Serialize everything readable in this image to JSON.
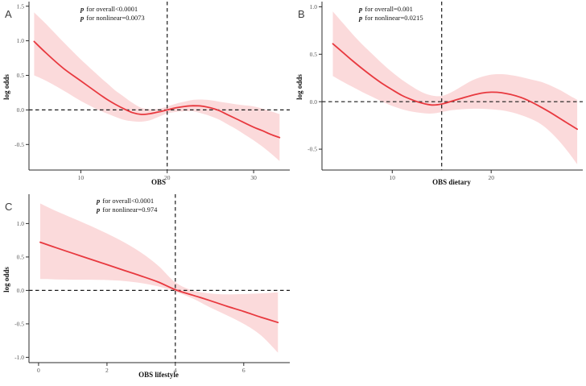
{
  "colors": {
    "background": "#ffffff",
    "curve": "#E8393F",
    "band": "#FBDADB",
    "dashed": "#1a1a1a",
    "axis": "#2b2b2b",
    "tick_text": "#565656"
  },
  "chart_data": [
    {
      "type": "line",
      "panel_label": "A",
      "xlabel": "OBS",
      "ylabel": "log odds",
      "annotation_line1_p": "p",
      "annotation_line1": " for overall<0.0001",
      "annotation_line2_p": "p",
      "annotation_line2": " for nonlinear=0.0073",
      "xlim": [
        4,
        34
      ],
      "ylim": [
        -0.87,
        1.52
      ],
      "xticks": [
        10,
        20,
        30
      ],
      "xtick_labels": [
        "10",
        "20",
        "30"
      ],
      "yticks": [
        1.5,
        1.0,
        0.5,
        0.0,
        -0.5
      ],
      "ytick_labels": [
        "1.5",
        "1.0",
        "0.5",
        "0.0",
        "-0.5"
      ],
      "ref_x": 20,
      "ref_y": 0,
      "legend": "none",
      "grid": false,
      "x": [
        4.6,
        6,
        8,
        10,
        12,
        13,
        14,
        15,
        16,
        17,
        18,
        19,
        20,
        21,
        22,
        23,
        24,
        25,
        26,
        27,
        28,
        29,
        30,
        31,
        32,
        33
      ],
      "estimate": [
        0.99,
        0.82,
        0.6,
        0.42,
        0.24,
        0.155,
        0.08,
        0.015,
        -0.04,
        -0.065,
        -0.055,
        -0.03,
        0,
        0.03,
        0.05,
        0.06,
        0.055,
        0.03,
        -0.01,
        -0.07,
        -0.13,
        -0.19,
        -0.25,
        -0.3,
        -0.355,
        -0.4
      ],
      "ci_upper": [
        1.41,
        1.24,
        0.98,
        0.73,
        0.5,
        0.39,
        0.28,
        0.19,
        0.1,
        0.03,
        0.01,
        0.015,
        0.05,
        0.09,
        0.12,
        0.145,
        0.15,
        0.14,
        0.12,
        0.1,
        0.08,
        0.065,
        0.05,
        0.02,
        -0.02,
        -0.06
      ],
      "ci_lower": [
        0.5,
        0.42,
        0.28,
        0.13,
        0.0,
        -0.05,
        -0.1,
        -0.145,
        -0.165,
        -0.17,
        -0.15,
        -0.1,
        -0.05,
        -0.03,
        -0.02,
        -0.02,
        -0.05,
        -0.09,
        -0.14,
        -0.21,
        -0.28,
        -0.36,
        -0.44,
        -0.53,
        -0.63,
        -0.74
      ]
    },
    {
      "type": "line",
      "panel_label": "B",
      "xlabel": "OBS dietary",
      "ylabel": "log odds",
      "annotation_line1_p": "p",
      "annotation_line1": " for overall=0.001",
      "annotation_line2_p": "p",
      "annotation_line2": " for nonlinear=0.0215",
      "xlim": [
        2.9,
        29.1
      ],
      "ylim": [
        -0.72,
        1.02
      ],
      "xticks": [
        10,
        20
      ],
      "xtick_labels": [
        "10",
        "20"
      ],
      "yticks": [
        1.0,
        0.5,
        0.0,
        -0.5
      ],
      "ytick_labels": [
        "1.0",
        "0.5",
        "0.0",
        "-0.5"
      ],
      "ref_x": 15,
      "ref_y": 0,
      "legend": "none",
      "grid": false,
      "x": [
        4,
        5,
        6,
        7,
        8,
        9,
        10,
        11,
        12,
        13,
        14,
        15,
        16,
        17,
        18,
        19,
        20,
        21,
        22,
        23,
        24,
        25,
        26,
        27,
        28,
        28.7
      ],
      "estimate": [
        0.61,
        0.52,
        0.43,
        0.345,
        0.265,
        0.19,
        0.125,
        0.065,
        0.02,
        -0.015,
        -0.035,
        -0.025,
        0.005,
        0.035,
        0.065,
        0.09,
        0.1,
        0.095,
        0.075,
        0.045,
        0.0,
        -0.055,
        -0.115,
        -0.18,
        -0.245,
        -0.29
      ],
      "ci_upper": [
        0.95,
        0.83,
        0.71,
        0.6,
        0.5,
        0.4,
        0.31,
        0.23,
        0.16,
        0.1,
        0.065,
        0.06,
        0.1,
        0.16,
        0.22,
        0.26,
        0.285,
        0.29,
        0.28,
        0.26,
        0.235,
        0.21,
        0.17,
        0.12,
        0.06,
        0.02
      ],
      "ci_lower": [
        0.27,
        0.21,
        0.155,
        0.1,
        0.05,
        0.0,
        -0.045,
        -0.08,
        -0.105,
        -0.12,
        -0.125,
        -0.11,
        -0.09,
        -0.08,
        -0.075,
        -0.075,
        -0.08,
        -0.09,
        -0.11,
        -0.14,
        -0.18,
        -0.235,
        -0.32,
        -0.43,
        -0.56,
        -0.66
      ]
    },
    {
      "type": "line",
      "panel_label": "C",
      "xlabel": "OBS lifestyle",
      "ylabel": "log odds",
      "annotation_line1_p": "p",
      "annotation_line1": " for overall<0.0001",
      "annotation_line2_p": "p",
      "annotation_line2": " for nonlinear=0.974",
      "xlim": [
        -0.28,
        7.3
      ],
      "ylim": [
        -1.08,
        1.39
      ],
      "xticks": [
        0,
        2,
        4,
        6
      ],
      "xtick_labels": [
        "0",
        "2",
        "4",
        "6"
      ],
      "yticks": [
        1.0,
        0.5,
        0.0,
        -0.5,
        -1.0
      ],
      "ytick_labels": [
        "1.0",
        "0.5",
        "0.0",
        "-0.5",
        "-1.0"
      ],
      "ref_x": 4,
      "ref_y": 0,
      "legend": "none",
      "grid": false,
      "x": [
        0.05,
        0.5,
        1,
        1.5,
        2,
        2.5,
        3,
        3.5,
        4,
        4.5,
        5,
        5.5,
        6,
        6.5,
        7
      ],
      "estimate": [
        0.72,
        0.64,
        0.555,
        0.47,
        0.385,
        0.3,
        0.215,
        0.125,
        0.01,
        -0.07,
        -0.15,
        -0.235,
        -0.315,
        -0.4,
        -0.48
      ],
      "ci_upper": [
        1.3,
        1.19,
        1.08,
        0.97,
        0.85,
        0.72,
        0.565,
        0.37,
        0.12,
        0.0,
        -0.045,
        -0.06,
        -0.055,
        -0.045,
        -0.03
      ],
      "ci_lower": [
        0.17,
        0.165,
        0.16,
        0.16,
        0.155,
        0.14,
        0.11,
        0.06,
        -0.02,
        -0.12,
        -0.25,
        -0.37,
        -0.5,
        -0.67,
        -0.93
      ]
    }
  ]
}
